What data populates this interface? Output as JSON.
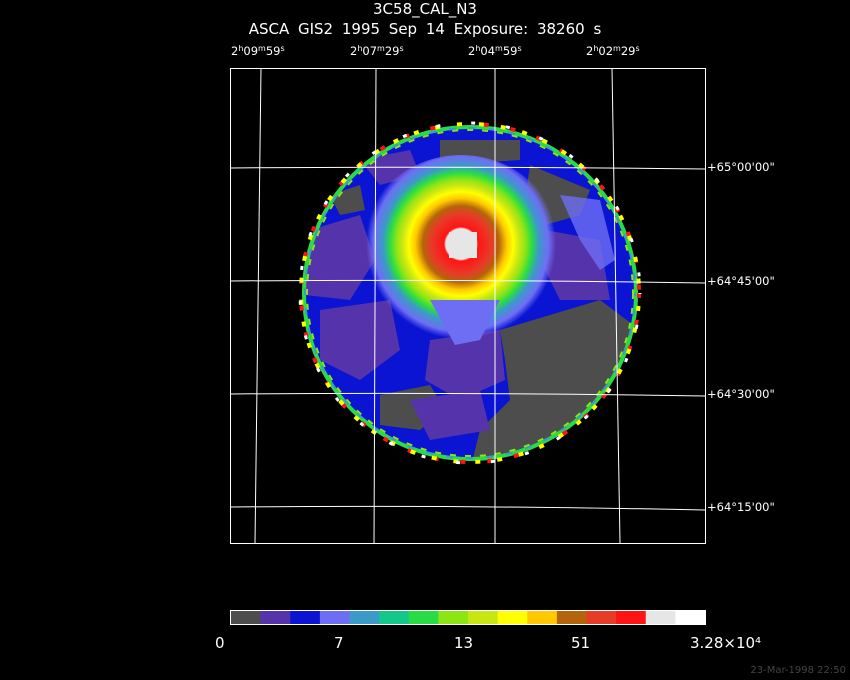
{
  "title": "3C58_CAL_N3",
  "subtitle": "ASCA GIS2   1995 Sep 14    Exposure: 38260 s",
  "ra_labels": [
    {
      "h": "2",
      "m": "09",
      "s": "59"
    },
    {
      "h": "2",
      "m": "07",
      "s": "29"
    },
    {
      "h": "2",
      "m": "04",
      "s": "59"
    },
    {
      "h": "2",
      "m": "02",
      "s": "29"
    }
  ],
  "dec_labels": [
    "+65°00'00\"",
    "+64°45'00\"",
    "+64°30'00\"",
    "+64°15'00\""
  ],
  "colorbar": {
    "colors": [
      "#4d4d4d",
      "#5533aa",
      "#0a14d2",
      "#6e6ef5",
      "#3c9ac8",
      "#14c88c",
      "#28dc46",
      "#8ce614",
      "#c8e614",
      "#ffff00",
      "#ffc800",
      "#b4640a",
      "#e63c28",
      "#ff1414",
      "#e6e6e6",
      "#ffffff"
    ],
    "labels": [
      "0",
      "7",
      "13",
      "51",
      "3.28×10⁴"
    ]
  },
  "timestamp": "23-Mar-1998 22:50"
}
